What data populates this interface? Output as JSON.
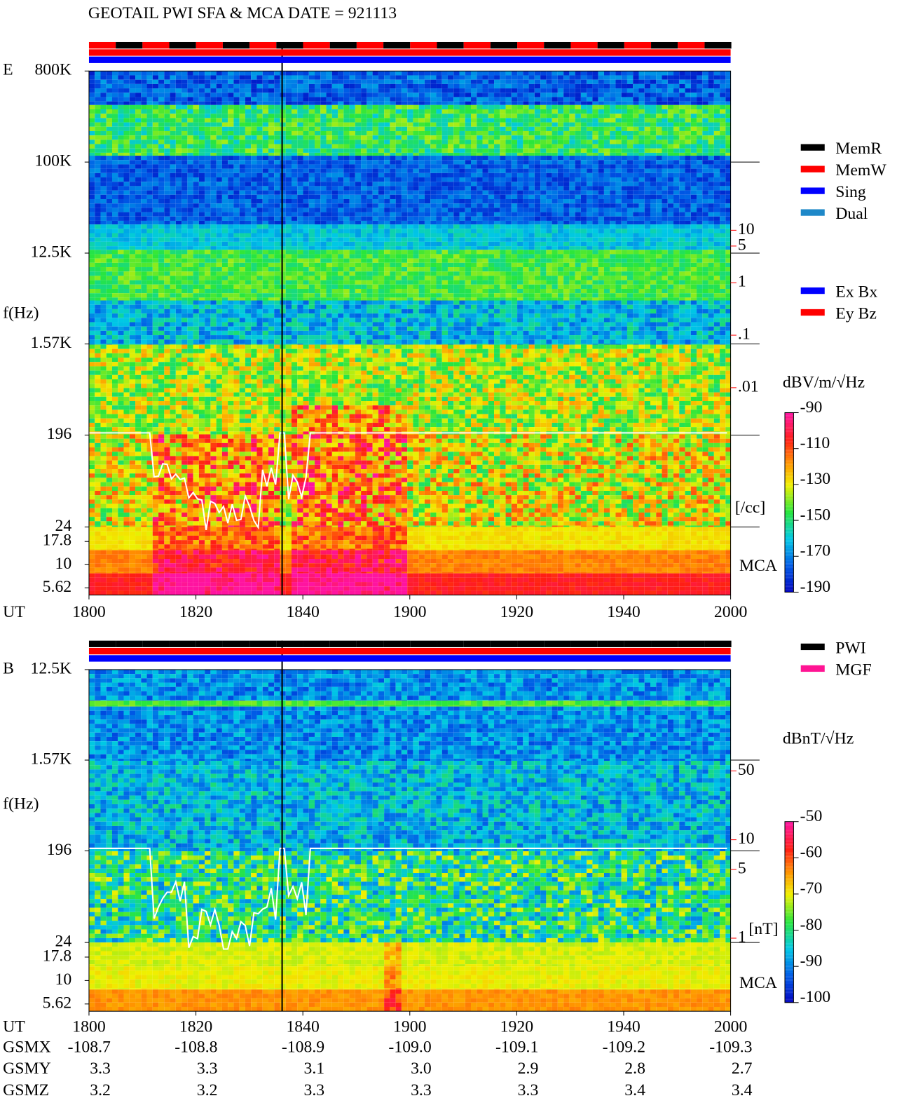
{
  "title": "GEOTAIL  PWI SFA & MCA   DATE = 921113",
  "chart_data": [
    {
      "type": "spectrogram",
      "panel_label": "E",
      "y_label": "f(Hz)",
      "x_label": "UT",
      "xticks": [
        "1800",
        "1820",
        "1840",
        "1900",
        "1920",
        "1940",
        "2000"
      ],
      "ylim": [
        24,
        800000
      ],
      "log_y": true,
      "yticks": [
        {
          "value": 800000,
          "label": "800K"
        },
        {
          "value": 100000,
          "label": "100K"
        },
        {
          "value": 12500,
          "label": "12.5K"
        },
        {
          "value": 1570,
          "label": "1.57K"
        },
        196,
        24
      ],
      "mca_label": "MCA",
      "mca_ylim": [
        4.7,
        25.5
      ],
      "mca_ticks": [
        17.8,
        10,
        5.62
      ],
      "density_ticks": [
        10,
        5,
        1,
        {
          "value": 0.1,
          "label": ".1"
        },
        {
          "value": 0.01,
          "label": ".01"
        }
      ],
      "density_unit": "[/cc]",
      "status_legend": [
        {
          "name": "MemR",
          "color": "#000000"
        },
        {
          "name": "MemW",
          "color": "#ff0000"
        },
        {
          "name": "Sing",
          "color": "#0000ff"
        },
        {
          "name": "Dual",
          "color": "#1e88c8"
        }
      ],
      "component_legend": [
        {
          "name": "Ex Bx",
          "color": "#0000ff"
        },
        {
          "name": "Ey Bz",
          "color": "#ff0000"
        }
      ],
      "colorbar_label": "dBV/m/√Hz",
      "clim": [
        -190,
        -90
      ],
      "cticks": [
        -90,
        -110,
        -130,
        -150,
        -170,
        -190
      ]
    },
    {
      "type": "spectrogram",
      "panel_label": "B",
      "y_label": "f(Hz)",
      "x_label": "UT",
      "xticks": [
        "1800",
        "1820",
        "1840",
        "1900",
        "1920",
        "1940",
        "2000"
      ],
      "ylim": [
        24,
        12500
      ],
      "log_y": true,
      "yticks": [
        {
          "value": 12500,
          "label": "12.5K"
        },
        {
          "value": 1570,
          "label": "1.57K"
        },
        196,
        24
      ],
      "mca_label": "MCA",
      "mca_ylim": [
        4.7,
        25.5
      ],
      "mca_ticks": [
        17.8,
        10,
        5.62
      ],
      "density_ticks": [
        50,
        10,
        5,
        1
      ],
      "density_unit": "[nT]",
      "status_legend": [
        {
          "name": "PWI",
          "color": "#000000"
        },
        {
          "name": "MGF",
          "color": "#ff1493"
        }
      ],
      "colorbar_label": "dBnT/√Hz",
      "clim": [
        -100,
        -50
      ],
      "cticks": [
        -50,
        -60,
        -70,
        -80,
        -90,
        -100
      ]
    }
  ],
  "orbit": {
    "labels": [
      "GSMX",
      "GSMY",
      "GSMZ"
    ],
    "rows": [
      [
        "-108.7",
        "-108.8",
        "-108.9",
        "-109.0",
        "-109.1",
        "-109.2",
        "-109.3"
      ],
      [
        "3.3",
        "3.3",
        "3.1",
        "3.0",
        "2.9",
        "2.8",
        "2.7"
      ],
      [
        "3.2",
        "3.2",
        "3.3",
        "3.3",
        "3.3",
        "3.4",
        "3.4"
      ]
    ]
  }
}
